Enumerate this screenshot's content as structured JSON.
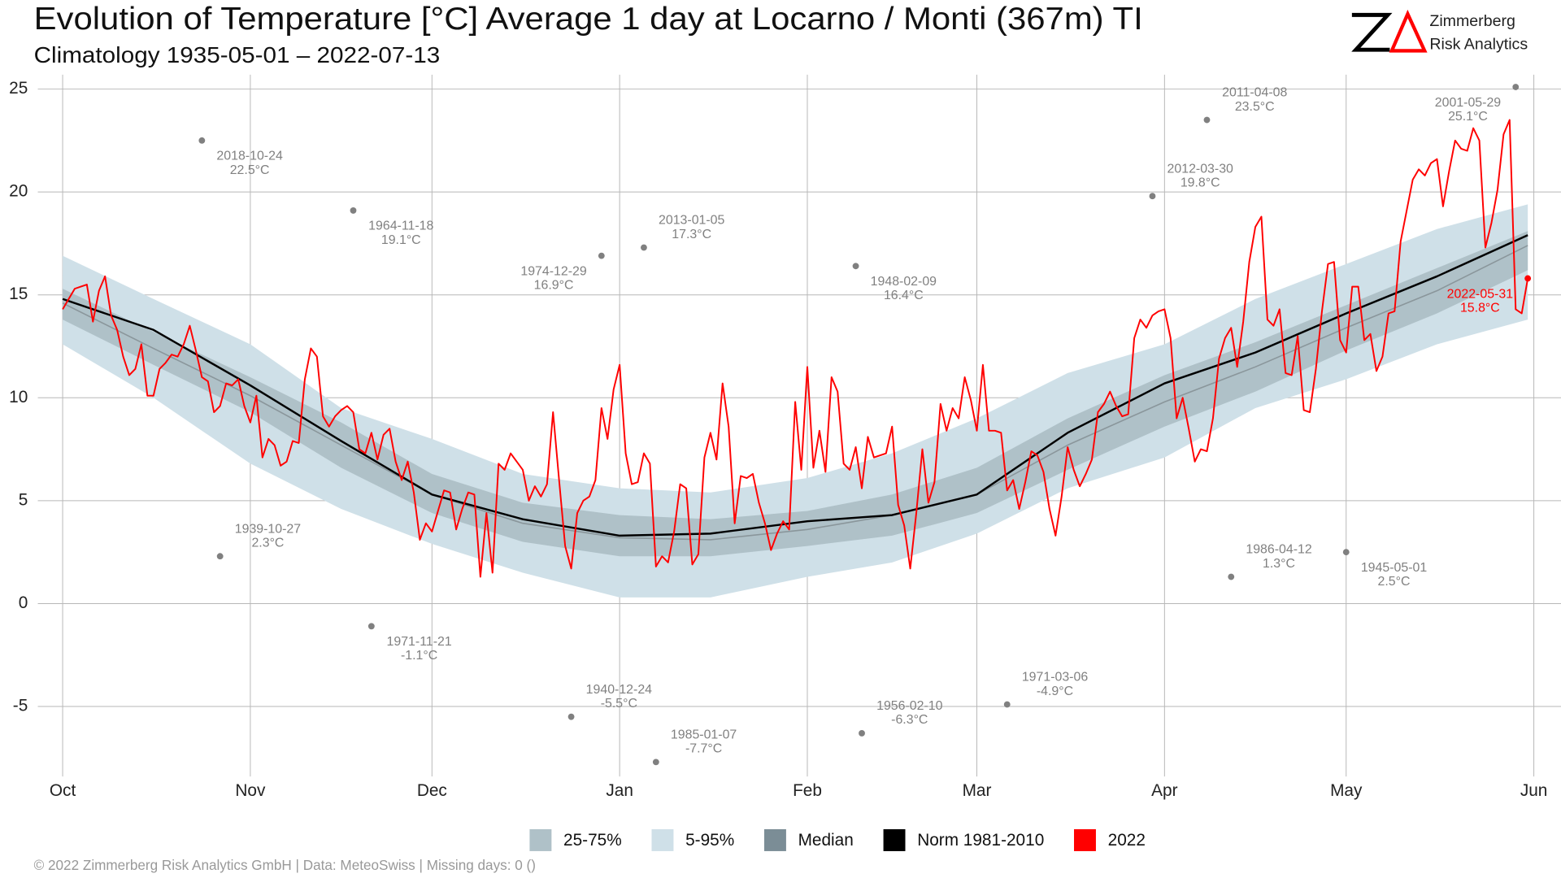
{
  "chart_data": {
    "type": "line",
    "title": "Evolution of Temperature [°C] Average 1 day at Locarno / Monti (367m) TI",
    "subtitle": "Climatology 1935-05-01 – 2022-07-13",
    "xlim": [
      -4.1,
      246.5
    ],
    "ylim": [
      -8.4,
      25.7
    ],
    "xticks": [
      {
        "value": 0,
        "label": "Oct"
      },
      {
        "value": 31,
        "label": "Nov"
      },
      {
        "value": 61,
        "label": "Dec"
      },
      {
        "value": 92,
        "label": "Jan"
      },
      {
        "value": 123,
        "label": "Feb"
      },
      {
        "value": 151,
        "label": "Mar"
      },
      {
        "value": 182,
        "label": "Apr"
      },
      {
        "value": 212,
        "label": "May"
      },
      {
        "value": 243,
        "label": "Jun"
      }
    ],
    "yticks": [
      -5,
      0,
      5,
      10,
      15,
      20,
      25
    ],
    "grid": true,
    "legend": "bottom",
    "series": [
      {
        "name": "25-75%",
        "type": "band",
        "color": "#afc1c8",
        "x": [
          0,
          15,
          31,
          46,
          61,
          76,
          92,
          107,
          123,
          137,
          151,
          166,
          182,
          197,
          212,
          227,
          242
        ],
        "high": [
          15.3,
          13.2,
          11.0,
          8.8,
          6.3,
          4.9,
          4.3,
          4.1,
          4.5,
          5.3,
          6.6,
          9.0,
          11.1,
          12.7,
          14.5,
          16.3,
          18.1
        ],
        "low": [
          13.8,
          11.6,
          9.3,
          6.6,
          4.4,
          3.0,
          2.3,
          2.3,
          2.8,
          3.3,
          4.4,
          6.5,
          8.6,
          10.3,
          12.3,
          14.1,
          16.2
        ]
      },
      {
        "name": "5-95%",
        "type": "band",
        "color": "#cfe0e8",
        "x": [
          0,
          15,
          31,
          46,
          61,
          76,
          92,
          107,
          123,
          137,
          151,
          166,
          182,
          197,
          212,
          227,
          242
        ],
        "high": [
          16.9,
          14.8,
          12.6,
          9.5,
          8.0,
          6.3,
          5.6,
          5.4,
          6.1,
          7.3,
          9.0,
          11.2,
          12.6,
          14.8,
          16.5,
          18.2,
          19.4
        ],
        "low": [
          12.6,
          10.0,
          6.8,
          4.6,
          2.9,
          1.5,
          0.3,
          0.3,
          1.3,
          2.0,
          3.4,
          5.6,
          7.1,
          9.5,
          10.9,
          12.6,
          13.8
        ]
      },
      {
        "name": "Median",
        "type": "line",
        "color": "#7b8d96",
        "x": [
          0,
          15,
          31,
          46,
          61,
          76,
          92,
          107,
          123,
          137,
          151,
          166,
          182,
          197,
          212,
          227,
          242
        ],
        "values": [
          14.6,
          12.4,
          10.1,
          7.7,
          5.3,
          3.9,
          3.2,
          3.1,
          3.6,
          4.3,
          5.3,
          7.7,
          9.8,
          11.5,
          13.4,
          15.2,
          17.4
        ]
      },
      {
        "name": "Norm 1981-2010",
        "type": "line",
        "color": "#000000",
        "x": [
          0,
          15,
          31,
          46,
          61,
          76,
          92,
          107,
          123,
          137,
          151,
          166,
          182,
          197,
          212,
          227,
          242
        ],
        "values": [
          14.8,
          13.3,
          10.6,
          7.9,
          5.3,
          4.1,
          3.3,
          3.4,
          4.0,
          4.3,
          5.3,
          8.3,
          10.7,
          12.2,
          14.1,
          15.9,
          17.9
        ]
      },
      {
        "name": "2022",
        "type": "line",
        "color": "#ff0000",
        "x": [
          0,
          1,
          2,
          3,
          4,
          5,
          6,
          7,
          8,
          9,
          10,
          11,
          12,
          13,
          14,
          15,
          16,
          17,
          18,
          19,
          20,
          21,
          22,
          23,
          24,
          25,
          26,
          27,
          28,
          29,
          30,
          31,
          32,
          33,
          34,
          35,
          36,
          37,
          38,
          39,
          40,
          41,
          42,
          43,
          44,
          45,
          46,
          47,
          48,
          49,
          50,
          51,
          52,
          53,
          54,
          55,
          56,
          57,
          58,
          59,
          60,
          61,
          62,
          63,
          64,
          65,
          66,
          67,
          68,
          69,
          70,
          71,
          72,
          73,
          74,
          75,
          76,
          77,
          78,
          79,
          80,
          81,
          82,
          83,
          84,
          85,
          86,
          87,
          88,
          89,
          90,
          91,
          92,
          93,
          94,
          95,
          96,
          97,
          98,
          99,
          100,
          101,
          102,
          103,
          104,
          105,
          106,
          107,
          108,
          109,
          110,
          111,
          112,
          113,
          114,
          115,
          116,
          117,
          118,
          119,
          120,
          121,
          122,
          123,
          124,
          125,
          126,
          127,
          128,
          129,
          130,
          131,
          132,
          133,
          134,
          135,
          136,
          137,
          138,
          139,
          140,
          141,
          142,
          143,
          144,
          145,
          146,
          147,
          148,
          149,
          150,
          151,
          152,
          153,
          154,
          155,
          156,
          157,
          158,
          159,
          160,
          161,
          162,
          163,
          164,
          165,
          166,
          167,
          168,
          169,
          170,
          171,
          172,
          173,
          174,
          175,
          176,
          177,
          178,
          179,
          180,
          181,
          182,
          183,
          184,
          185,
          186,
          187,
          188,
          189,
          190,
          191,
          192,
          193,
          194,
          195,
          196,
          197,
          198,
          199,
          200,
          201,
          202,
          203,
          204,
          205,
          206,
          207,
          208,
          209,
          210,
          211,
          212,
          213,
          214,
          215,
          216,
          217,
          218,
          219,
          220,
          221,
          222,
          223,
          224,
          225,
          226,
          227,
          228,
          229,
          230,
          231,
          232,
          233,
          234,
          235,
          236,
          237,
          238,
          239,
          240,
          241,
          242
        ],
        "values": [
          14.3,
          14.8,
          15.3,
          15.4,
          15.5,
          13.7,
          15.2,
          15.9,
          14.0,
          13.3,
          12.0,
          11.1,
          11.4,
          12.6,
          10.1,
          10.1,
          11.4,
          11.7,
          12.1,
          12.0,
          12.6,
          13.5,
          12.3,
          11.0,
          10.8,
          9.3,
          9.6,
          10.7,
          10.6,
          10.9,
          9.6,
          8.8,
          10.1,
          7.1,
          8.0,
          7.7,
          6.7,
          6.9,
          7.9,
          7.8,
          10.9,
          12.4,
          12.0,
          9.1,
          8.6,
          9.1,
          9.4,
          9.6,
          9.3,
          7.5,
          7.3,
          8.3,
          7.0,
          8.2,
          8.5,
          6.9,
          6.0,
          6.9,
          5.4,
          3.1,
          3.9,
          3.5,
          4.5,
          5.5,
          5.4,
          3.6,
          4.6,
          5.4,
          5.3,
          1.3,
          4.4,
          1.5,
          6.8,
          6.5,
          7.3,
          6.9,
          6.5,
          5.0,
          5.7,
          5.2,
          5.8,
          9.3,
          6.0,
          2.8,
          1.7,
          4.4,
          5.0,
          5.2,
          6.0,
          9.5,
          8.0,
          10.4,
          11.6,
          7.3,
          5.8,
          5.9,
          7.3,
          6.8,
          1.8,
          2.3,
          2.0,
          3.5,
          5.8,
          5.6,
          1.9,
          2.4,
          7.1,
          8.3,
          7.0,
          10.7,
          8.6,
          3.9,
          6.2,
          6.1,
          6.3,
          4.9,
          3.9,
          2.6,
          3.4,
          4.0,
          3.6,
          9.8,
          6.5,
          11.5,
          6.6,
          8.4,
          6.4,
          11.0,
          10.3,
          6.8,
          6.5,
          7.6,
          5.6,
          8.1,
          7.1,
          7.2,
          7.3,
          8.6,
          4.8,
          3.8,
          1.7,
          4.4,
          7.5,
          4.9,
          5.9,
          9.7,
          8.4,
          9.5,
          9.0,
          11.0,
          9.9,
          8.4,
          11.6,
          8.4,
          8.4,
          8.3,
          5.5,
          6.0,
          4.6,
          5.9,
          7.4,
          7.2,
          6.4,
          4.6,
          3.3,
          5.2,
          7.6,
          6.5,
          5.7,
          6.3,
          7.0,
          9.3,
          9.7,
          10.3,
          9.6,
          9.1,
          9.2,
          12.9,
          13.8,
          13.4,
          14.0,
          14.2,
          14.3,
          12.9,
          9.0,
          10.0,
          8.5,
          6.9,
          7.5,
          7.4,
          9.0,
          11.9,
          12.9,
          13.4,
          11.5,
          13.7,
          16.6,
          18.3,
          18.8,
          13.8,
          13.5,
          14.3,
          11.2,
          11.1,
          13.0,
          9.4,
          9.3,
          11.4,
          14.2,
          16.5,
          16.6,
          12.8,
          12.2,
          15.4,
          15.4,
          12.8,
          13.1,
          11.3,
          12.0,
          14.1,
          14.2,
          17.6,
          19.1,
          20.6,
          21.1,
          20.8,
          21.4,
          21.6,
          19.3,
          21.0,
          22.5,
          22.1,
          22.0,
          23.1,
          22.5,
          17.3,
          18.5,
          20.1,
          22.8,
          23.5,
          14.3,
          14.1,
          15.8
        ]
      }
    ],
    "annotations": [
      {
        "x": 23,
        "value": 22.5,
        "date": "2018-10-24",
        "value_label": "22.5°C",
        "color": "#808080"
      },
      {
        "x": 26,
        "value": 2.3,
        "date": "1939-10-27",
        "value_label": "2.3°C",
        "color": "#808080"
      },
      {
        "x": 48,
        "value": 19.1,
        "date": "1964-11-18",
        "value_label": "19.1°C",
        "color": "#808080"
      },
      {
        "x": 51,
        "value": -1.1,
        "date": "1971-11-21",
        "value_label": "-1.1°C",
        "color": "#808080"
      },
      {
        "x": 89,
        "value": 16.9,
        "date": "1974-12-29",
        "value_label": "16.9°C",
        "color": "#808080"
      },
      {
        "x": 84,
        "value": -5.5,
        "date": "1940-12-24",
        "value_label": "-5.5°C",
        "color": "#808080"
      },
      {
        "x": 96,
        "value": 17.3,
        "date": "2013-01-05",
        "value_label": "17.3°C",
        "color": "#808080"
      },
      {
        "x": 98,
        "value": -7.7,
        "date": "1985-01-07",
        "value_label": "-7.7°C",
        "color": "#808080"
      },
      {
        "x": 131,
        "value": 16.4,
        "date": "1948-02-09",
        "value_label": "16.4°C",
        "color": "#808080"
      },
      {
        "x": 132,
        "value": -6.3,
        "date": "1956-02-10",
        "value_label": "-6.3°C",
        "color": "#808080"
      },
      {
        "x": 156,
        "value": -4.9,
        "date": "1971-03-06",
        "value_label": "-4.9°C",
        "color": "#808080"
      },
      {
        "x": 180,
        "value": 19.8,
        "date": "2012-03-30",
        "value_label": "19.8°C",
        "color": "#808080"
      },
      {
        "x": 189,
        "value": 23.5,
        "date": "2011-04-08",
        "value_label": "23.5°C",
        "color": "#808080"
      },
      {
        "x": 193,
        "value": 1.3,
        "date": "1986-04-12",
        "value_label": "1.3°C",
        "color": "#808080"
      },
      {
        "x": 212,
        "value": 2.5,
        "date": "1945-05-01",
        "value_label": "2.5°C",
        "color": "#808080"
      },
      {
        "x": 240,
        "value": 25.1,
        "date": "2001-05-29",
        "value_label": "25.1°C",
        "color": "#808080"
      },
      {
        "x": 242,
        "value": 15.8,
        "date": "2022-05-31",
        "value_label": "15.8°C",
        "color": "#ff0000"
      }
    ]
  },
  "logo": {
    "line1": "Zimmerberg",
    "line2": "Risk Analytics"
  },
  "footer": "©  2022 Zimmerberg Risk Analytics GmbH | Data: MeteoSwiss | Missing days: 0 ()"
}
